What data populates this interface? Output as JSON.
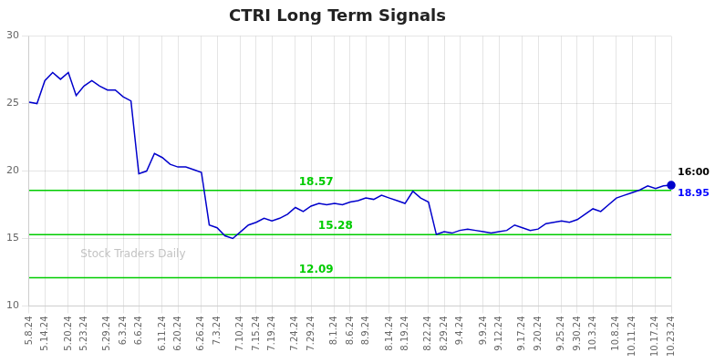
{
  "chart_data": {
    "type": "line",
    "title": "CTRI Long Term Signals",
    "categories": [
      "5.8.24",
      null,
      "5.14.24",
      null,
      null,
      "5.20.24",
      null,
      "5.23.24",
      null,
      null,
      "5.29.24",
      null,
      "6.3.24",
      null,
      "6.6.24",
      null,
      null,
      "6.11.24",
      null,
      "6.20.24",
      null,
      null,
      "6.26.24",
      null,
      "7.3.24",
      null,
      null,
      "7.10.24",
      null,
      "7.15.24",
      null,
      "7.19.24",
      null,
      null,
      "7.24.24",
      null,
      "7.29.24",
      null,
      null,
      "8.1.24",
      null,
      "8.6.24",
      null,
      "8.9.24",
      null,
      null,
      "8.14.24",
      null,
      "8.19.24",
      null,
      null,
      "8.22.24",
      null,
      "8.29.24",
      null,
      "9.4.24",
      null,
      null,
      "9.9.24",
      null,
      "9.12.24",
      null,
      null,
      "9.17.24",
      null,
      "9.20.24",
      null,
      null,
      "9.25.24",
      null,
      "9.30.24",
      null,
      "10.3.24",
      null,
      null,
      "10.8.24",
      null,
      "10.11.24",
      null,
      null,
      "10.17.24",
      null,
      "10.23.24"
    ],
    "values": [
      25.1,
      25.0,
      26.7,
      27.3,
      26.8,
      27.3,
      25.6,
      26.3,
      26.7,
      26.3,
      26.0,
      26.0,
      25.5,
      25.2,
      19.8,
      20.0,
      21.3,
      21.0,
      20.5,
      20.3,
      20.3,
      20.1,
      19.9,
      16.0,
      15.8,
      15.2,
      15.0,
      15.5,
      16.0,
      16.2,
      16.5,
      16.3,
      16.5,
      16.8,
      17.3,
      17.0,
      17.4,
      17.6,
      17.5,
      17.6,
      17.5,
      17.7,
      17.8,
      18.0,
      17.9,
      18.2,
      18.0,
      17.8,
      17.6,
      18.5,
      18.0,
      17.7,
      15.3,
      15.5,
      15.4,
      15.6,
      15.7,
      15.6,
      15.5,
      15.4,
      15.5,
      15.6,
      16.0,
      15.8,
      15.6,
      15.7,
      16.1,
      16.2,
      16.3,
      16.2,
      16.4,
      16.8,
      17.2,
      17.0,
      17.5,
      18.0,
      18.2,
      18.4,
      18.6,
      18.9,
      18.7,
      18.9,
      18.95
    ],
    "color": "#0000cc",
    "hlines": [
      {
        "value": 18.57,
        "label": "18.57",
        "color": "#00cc00"
      },
      {
        "value": 15.28,
        "label": "15.28",
        "color": "#00cc00"
      },
      {
        "value": 12.09,
        "label": "12.09",
        "color": "#00cc00"
      }
    ],
    "annotations": [
      {
        "text": "16:00",
        "color": "#000000"
      },
      {
        "text": "18.95",
        "color": "#0000ff"
      }
    ],
    "watermark": "Stock Traders Daily",
    "ylim": [
      10,
      30
    ],
    "yticks": [
      10,
      15,
      20,
      25,
      30
    ],
    "grid": true
  }
}
